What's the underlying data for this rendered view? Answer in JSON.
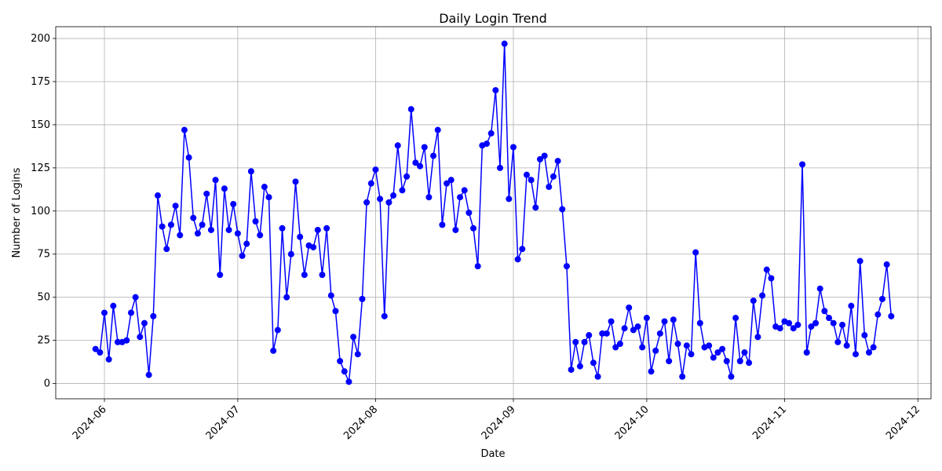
{
  "chart_data": {
    "type": "line",
    "title": "Daily Login Trend",
    "x_label": "Date",
    "y_label": "Number of Logins",
    "color": "#0000ff",
    "grid": true,
    "x": [
      "2024-05-30",
      "2024-05-31",
      "2024-06-01",
      "2024-06-02",
      "2024-06-03",
      "2024-06-04",
      "2024-06-05",
      "2024-06-06",
      "2024-06-07",
      "2024-06-08",
      "2024-06-09",
      "2024-06-10",
      "2024-06-11",
      "2024-06-12",
      "2024-06-13",
      "2024-06-14",
      "2024-06-15",
      "2024-06-16",
      "2024-06-17",
      "2024-06-18",
      "2024-06-19",
      "2024-06-20",
      "2024-06-21",
      "2024-06-22",
      "2024-06-23",
      "2024-06-24",
      "2024-06-25",
      "2024-06-26",
      "2024-06-27",
      "2024-06-28",
      "2024-06-29",
      "2024-06-30",
      "2024-07-01",
      "2024-07-02",
      "2024-07-03",
      "2024-07-04",
      "2024-07-05",
      "2024-07-06",
      "2024-07-07",
      "2024-07-08",
      "2024-07-09",
      "2024-07-10",
      "2024-07-11",
      "2024-07-12",
      "2024-07-13",
      "2024-07-14",
      "2024-07-15",
      "2024-07-16",
      "2024-07-17",
      "2024-07-18",
      "2024-07-19",
      "2024-07-20",
      "2024-07-21",
      "2024-07-22",
      "2024-07-23",
      "2024-07-24",
      "2024-07-25",
      "2024-07-26",
      "2024-07-27",
      "2024-07-28",
      "2024-07-29",
      "2024-07-30",
      "2024-07-31",
      "2024-08-01",
      "2024-08-02",
      "2024-08-03",
      "2024-08-04",
      "2024-08-05",
      "2024-08-06",
      "2024-08-07",
      "2024-08-08",
      "2024-08-09",
      "2024-08-10",
      "2024-08-11",
      "2024-08-12",
      "2024-08-13",
      "2024-08-14",
      "2024-08-15",
      "2024-08-16",
      "2024-08-17",
      "2024-08-18",
      "2024-08-19",
      "2024-08-20",
      "2024-08-21",
      "2024-08-22",
      "2024-08-23",
      "2024-08-24",
      "2024-08-25",
      "2024-08-26",
      "2024-08-27",
      "2024-08-28",
      "2024-08-29",
      "2024-08-30",
      "2024-08-31",
      "2024-09-01",
      "2024-09-02",
      "2024-09-03",
      "2024-09-04",
      "2024-09-05",
      "2024-09-06",
      "2024-09-07",
      "2024-09-08",
      "2024-09-09",
      "2024-09-10",
      "2024-09-11",
      "2024-09-12",
      "2024-09-13",
      "2024-09-14",
      "2024-09-15",
      "2024-09-16",
      "2024-09-17",
      "2024-09-18",
      "2024-09-19",
      "2024-09-20",
      "2024-09-21",
      "2024-09-22",
      "2024-09-23",
      "2024-09-24",
      "2024-09-25",
      "2024-09-26",
      "2024-09-27",
      "2024-09-28",
      "2024-09-29",
      "2024-09-30",
      "2024-10-01",
      "2024-10-02",
      "2024-10-03",
      "2024-10-04",
      "2024-10-05",
      "2024-10-06",
      "2024-10-07",
      "2024-10-08",
      "2024-10-09",
      "2024-10-10",
      "2024-10-11",
      "2024-10-12",
      "2024-10-13",
      "2024-10-14",
      "2024-10-15",
      "2024-10-16",
      "2024-10-17",
      "2024-10-18",
      "2024-10-19",
      "2024-10-20",
      "2024-10-21",
      "2024-10-22",
      "2024-10-23",
      "2024-10-24",
      "2024-10-25",
      "2024-10-26",
      "2024-10-27",
      "2024-10-28",
      "2024-10-29",
      "2024-10-30",
      "2024-10-31",
      "2024-11-01",
      "2024-11-02",
      "2024-11-03",
      "2024-11-04",
      "2024-11-05",
      "2024-11-06",
      "2024-11-07",
      "2024-11-08",
      "2024-11-09",
      "2024-11-10",
      "2024-11-11",
      "2024-11-12",
      "2024-11-13",
      "2024-11-14",
      "2024-11-15",
      "2024-11-16",
      "2024-11-17",
      "2024-11-18",
      "2024-11-19",
      "2024-11-20",
      "2024-11-21",
      "2024-11-22",
      "2024-11-23",
      "2024-11-24",
      "2024-11-25"
    ],
    "values": [
      20,
      18,
      41,
      14,
      45,
      24,
      24,
      25,
      41,
      50,
      27,
      35,
      5,
      39,
      109,
      91,
      78,
      92,
      103,
      86,
      147,
      131,
      96,
      87,
      92,
      110,
      89,
      118,
      63,
      113,
      89,
      104,
      87,
      74,
      81,
      123,
      94,
      86,
      114,
      108,
      19,
      31,
      90,
      50,
      75,
      117,
      85,
      63,
      80,
      79,
      89,
      63,
      90,
      51,
      42,
      13,
      7,
      1,
      27,
      17,
      49,
      105,
      116,
      124,
      107,
      39,
      105,
      109,
      138,
      112,
      120,
      159,
      128,
      126,
      137,
      108,
      132,
      147,
      92,
      116,
      118,
      89,
      108,
      112,
      99,
      90,
      68,
      138,
      139,
      145,
      170,
      125,
      197,
      107,
      137,
      72,
      78,
      121,
      118,
      102,
      130,
      132,
      114,
      120,
      129,
      101,
      68,
      8,
      24,
      10,
      24,
      28,
      12,
      4,
      29,
      29,
      36,
      21,
      23,
      32,
      44,
      31,
      33,
      21,
      38,
      7,
      19,
      29,
      36,
      13,
      37,
      23,
      4,
      22,
      17,
      76,
      35,
      21,
      22,
      15,
      18,
      20,
      13,
      4,
      38,
      13,
      18,
      12,
      48,
      27,
      51,
      66,
      61,
      33,
      32,
      36,
      35,
      32,
      34,
      127,
      18,
      33,
      35,
      55,
      42,
      38,
      35,
      24,
      34,
      22,
      45,
      17,
      71,
      28,
      18,
      21,
      40,
      49,
      69,
      39
    ],
    "ylim": [
      -8.85,
      206.85
    ],
    "yticks": [
      0,
      25,
      50,
      75,
      100,
      125,
      150,
      175,
      200
    ],
    "xticks": [
      "2024-06",
      "2024-07",
      "2024-08",
      "2024-09",
      "2024-10",
      "2024-11",
      "2024-12"
    ]
  }
}
